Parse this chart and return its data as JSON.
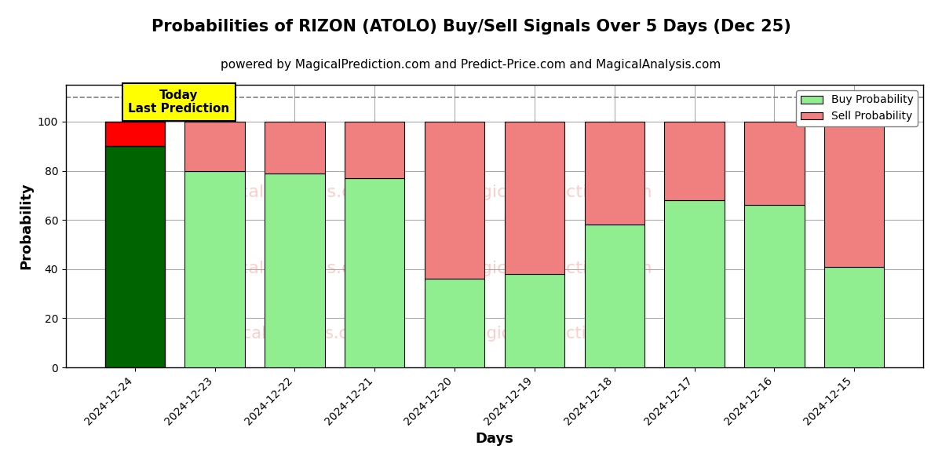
{
  "title": "Probabilities of RIZON (ATOLO) Buy/Sell Signals Over 5 Days (Dec 25)",
  "subtitle": "powered by MagicalPrediction.com and Predict-Price.com and MagicalAnalysis.com",
  "xlabel": "Days",
  "ylabel": "Probability",
  "dates": [
    "2024-12-24",
    "2024-12-23",
    "2024-12-22",
    "2024-12-21",
    "2024-12-20",
    "2024-12-19",
    "2024-12-18",
    "2024-12-17",
    "2024-12-16",
    "2024-12-15"
  ],
  "buy_values": [
    90,
    80,
    79,
    77,
    36,
    38,
    58,
    68,
    66,
    41
  ],
  "sell_values": [
    10,
    20,
    21,
    23,
    64,
    62,
    42,
    32,
    34,
    59
  ],
  "today_buy_color": "#006400",
  "today_sell_color": "#FF0000",
  "buy_color": "#90EE90",
  "sell_color": "#F08080",
  "today_annotation_bg": "#FFFF00",
  "today_annotation_text": "Today\nLast Prediction",
  "ylim": [
    0,
    115
  ],
  "yticks": [
    0,
    20,
    40,
    60,
    80,
    100
  ],
  "dashed_line_y": 110,
  "title_fontsize": 15,
  "subtitle_fontsize": 11,
  "background_color": "#ffffff",
  "grid_color": "#aaaaaa",
  "bar_width": 0.75
}
